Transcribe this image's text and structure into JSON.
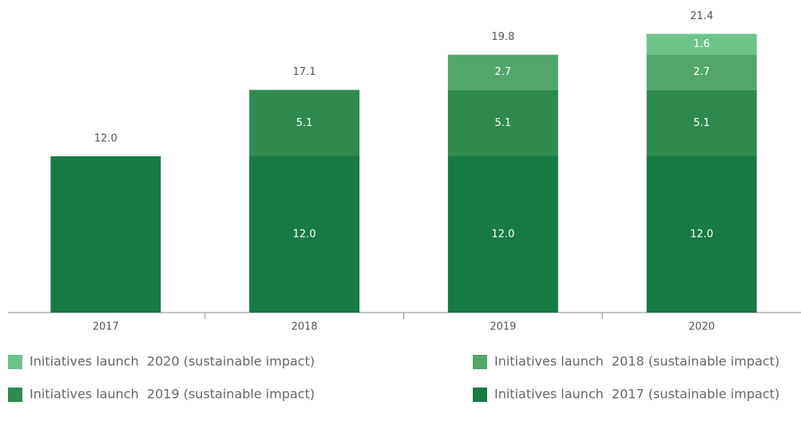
{
  "chart_data": {
    "type": "bar",
    "stacked": true,
    "categories": [
      "2017",
      "2018",
      "2019",
      "2020"
    ],
    "series": [
      {
        "name": "Initiatives launch  2017 (sustainable impact)",
        "color": "#177a45",
        "values": [
          12,
          12,
          12,
          12
        ],
        "value_labels": [
          null,
          "12.0",
          "12.0",
          "12.0"
        ]
      },
      {
        "name": "Initiatives launch  2019 (sustainable impact)",
        "color": "#2f8a50",
        "values": [
          null,
          5.1,
          5.1,
          5.1
        ],
        "value_labels": [
          null,
          "5.1",
          "5.1",
          "5.1"
        ]
      },
      {
        "name": "Initiatives launch  2018 (sustainable impact)",
        "color": "#52a56b",
        "values": [
          null,
          null,
          2.7,
          2.7
        ],
        "value_labels": [
          null,
          null,
          "2.7",
          "2.7"
        ]
      },
      {
        "name": "Initiatives launch  2020 (sustainable impact)",
        "color": "#6cc48a",
        "values": [
          null,
          null,
          null,
          1.6
        ],
        "value_labels": [
          null,
          null,
          null,
          "1.6"
        ]
      }
    ],
    "totals": [
      12,
      17.1,
      19.8,
      21.4
    ],
    "total_labels": [
      "12.0",
      "17.1",
      "19.8",
      "21.4"
    ],
    "ylim": [
      0,
      24
    ]
  }
}
